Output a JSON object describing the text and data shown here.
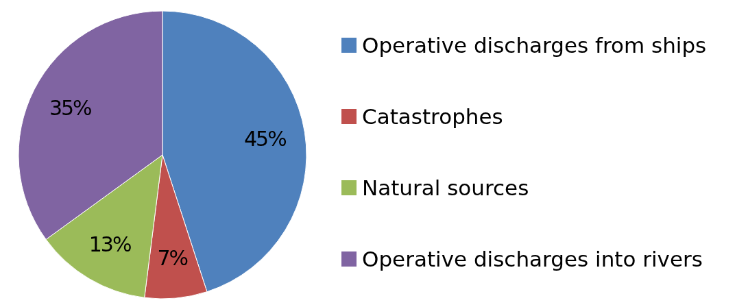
{
  "chart_data": {
    "type": "pie",
    "categories": [
      "Operative discharges from ships",
      "Catastrophes",
      "Natural sources",
      "Operative discharges into rivers"
    ],
    "values": [
      45,
      7,
      13,
      35
    ],
    "colors": [
      "#4f81bd",
      "#c0504d",
      "#9bbb59",
      "#8064a2"
    ],
    "value_labels": [
      "45%",
      "7%",
      "13%",
      "35%"
    ],
    "legend": "right"
  }
}
